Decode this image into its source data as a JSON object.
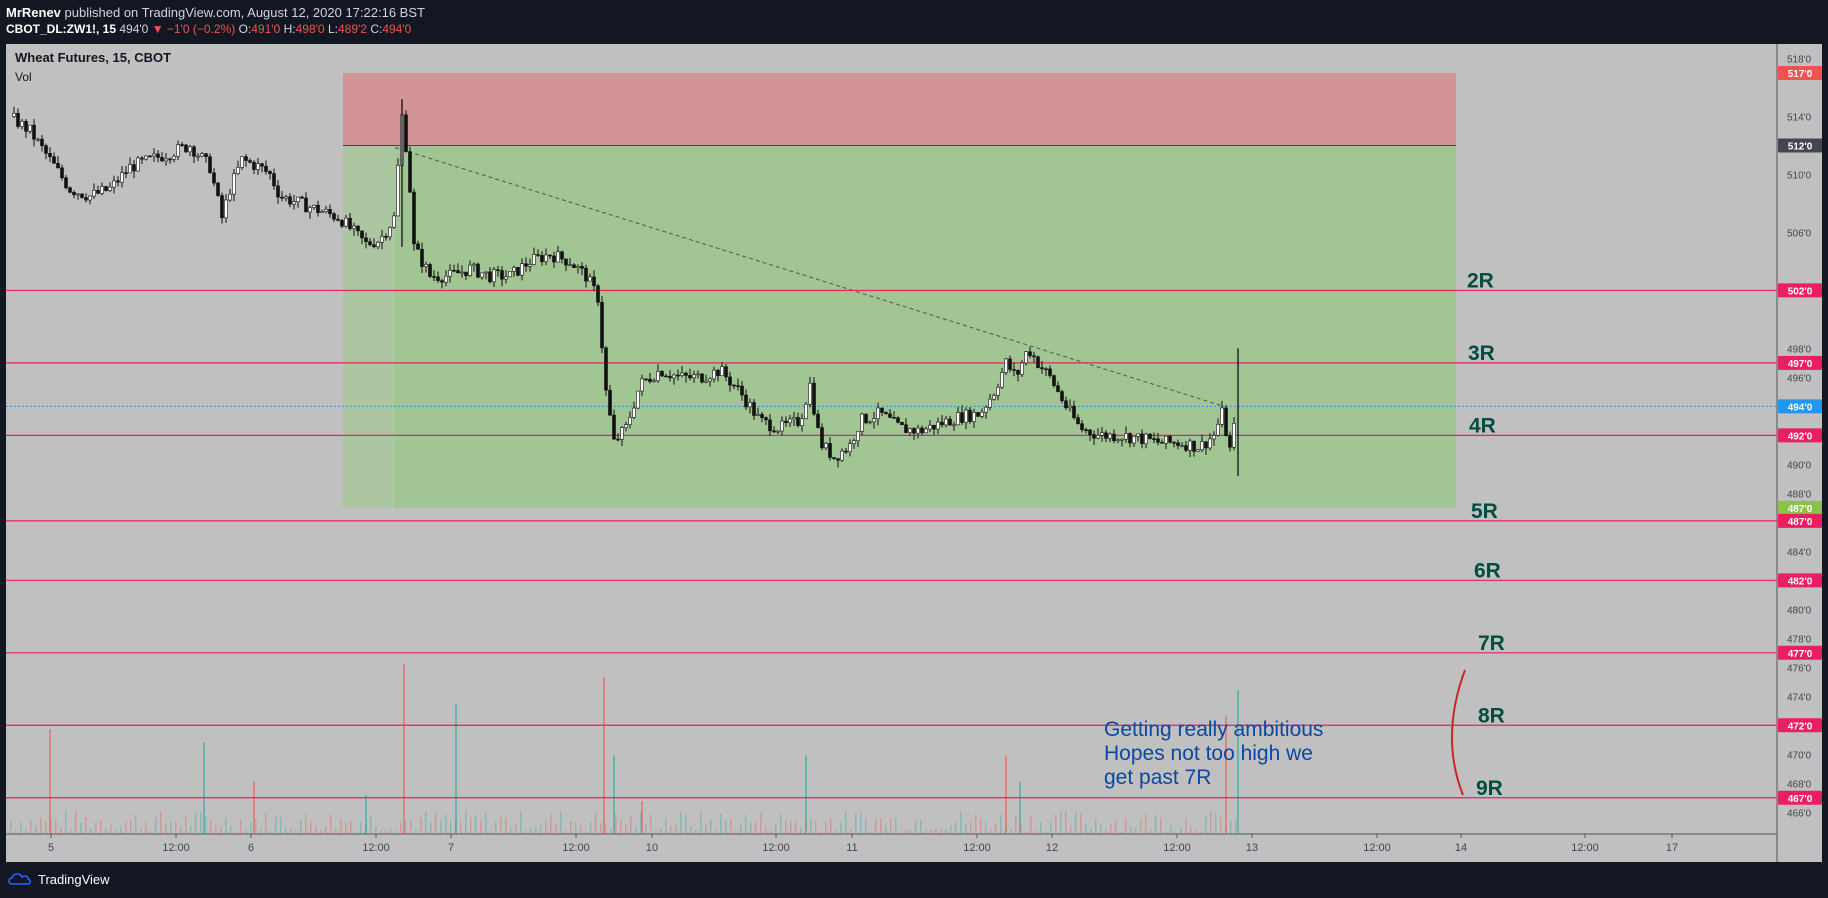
{
  "header": {
    "publisher_name": "MrRenev",
    "published_text": "published on TradingView.com, August 12, 2020 17:22:16 BST",
    "symbol": "CBOT_DL:ZW1!, 15",
    "last": "494'0",
    "change": "▼ −1'0 (−0.2%)",
    "open_label": "O:",
    "open": "491'0",
    "high_label": "H:",
    "high": "498'0",
    "low_label": "L:",
    "low": "489'2",
    "close_label": "C:",
    "close": "494'0"
  },
  "pane": {
    "title": "Wheat Futures, 15, CBOT",
    "volume_label": "Vol"
  },
  "footer": {
    "brand": "TradingView"
  },
  "colors": {
    "background": "#c0c0c0",
    "stop_zone": "#d29494",
    "target_zone": "#a2c594",
    "level_line": "#e91e63",
    "r_label": "#004d40",
    "note_text": "#0d47a1",
    "bracket": "#c62828",
    "current_price": "#2196f3",
    "up_volume": "#26a69a",
    "down_volume": "#ef5350"
  },
  "chart_data": {
    "type": "candlestick",
    "symbol": "Wheat Futures, 15, CBOT",
    "price_unit": "cents (xxx'y notation)",
    "x_tick_labels": [
      "5",
      "12:00",
      "6",
      "12:00",
      "7",
      "12:00",
      "10",
      "12:00",
      "11",
      "12:00",
      "12",
      "12:00",
      "13",
      "12:00",
      "14",
      "12:00",
      "17"
    ],
    "y_tick_labels": [
      "518'0",
      "514'0",
      "510'0",
      "506'0",
      "498'0",
      "496'0",
      "490'0",
      "488'0",
      "484'0",
      "480'0",
      "478'0",
      "476'0",
      "474'0",
      "470'0",
      "468'0",
      "466'0"
    ],
    "ylim": [
      464.5,
      519
    ],
    "price_tags": [
      {
        "label": "517'0",
        "value": 517,
        "color": "#ef5350"
      },
      {
        "label": "512'0",
        "value": 512,
        "color": "#434651"
      },
      {
        "label": "502'0",
        "value": 502,
        "color": "#e91e63"
      },
      {
        "label": "497'0",
        "value": 497,
        "color": "#e91e63"
      },
      {
        "label": "494'0",
        "value": 494,
        "color": "#2196f3"
      },
      {
        "label": "492'0",
        "value": 492,
        "color": "#e91e63"
      },
      {
        "label": "487'0",
        "value": 487,
        "color": "#8bc34a"
      },
      {
        "label": "487'0",
        "value": 486.1,
        "color": "#e91e63"
      },
      {
        "label": "482'0",
        "value": 482,
        "color": "#e91e63"
      },
      {
        "label": "477'0",
        "value": 477,
        "color": "#e91e63"
      },
      {
        "label": "472'0",
        "value": 472,
        "color": "#e91e63"
      },
      {
        "label": "467'0",
        "value": 467,
        "color": "#e91e63"
      }
    ],
    "position": {
      "type": "short",
      "entry": 512,
      "stop": 517,
      "target": 487
    },
    "r_levels": [
      {
        "label": "2R",
        "price": 502
      },
      {
        "label": "3R",
        "price": 497
      },
      {
        "label": "4R",
        "price": 492
      },
      {
        "label": "5R",
        "price": 487
      },
      {
        "label": "6R",
        "price": 482
      },
      {
        "label": "7R",
        "price": 477
      },
      {
        "label": "8R",
        "price": 472
      },
      {
        "label": "9R",
        "price": 467
      }
    ],
    "current_price": 494,
    "annotation": [
      "Getting really ambitious",
      "Hopes not too high we",
      "get past 7R"
    ],
    "price_path": [
      [
        0,
        514
      ],
      [
        1,
        513
      ],
      [
        2,
        511
      ],
      [
        3,
        509
      ],
      [
        4,
        508.5
      ],
      [
        5,
        509
      ],
      [
        6,
        510.5
      ],
      [
        7,
        511
      ],
      [
        8,
        511.5
      ],
      [
        9,
        512
      ],
      [
        10,
        510.5
      ],
      [
        10.6,
        507
      ],
      [
        11,
        509
      ],
      [
        11.6,
        511
      ],
      [
        12.5,
        510.5
      ],
      [
        13,
        510
      ],
      [
        13.5,
        508.5
      ],
      [
        14.5,
        508
      ],
      [
        15.5,
        507.5
      ],
      [
        16.5,
        507
      ],
      [
        17.2,
        506
      ],
      [
        17.8,
        505.2
      ],
      [
        18.5,
        505.5
      ],
      [
        19.2,
        507
      ],
      [
        19.6,
        514
      ],
      [
        19.9,
        511
      ],
      [
        20.2,
        505
      ],
      [
        21,
        503
      ],
      [
        22,
        503
      ],
      [
        23,
        503.5
      ],
      [
        24,
        503
      ],
      [
        25,
        503
      ],
      [
        26,
        504
      ],
      [
        27,
        504.5
      ],
      [
        28,
        504
      ],
      [
        28.8,
        503
      ],
      [
        29.4,
        501.5
      ],
      [
        29.8,
        495
      ],
      [
        30.2,
        491.5
      ],
      [
        30.8,
        492.5
      ],
      [
        31.5,
        495.5
      ],
      [
        32.5,
        496.5
      ],
      [
        33.5,
        496
      ],
      [
        34.5,
        496
      ],
      [
        35.5,
        496.5
      ],
      [
        36.5,
        495
      ],
      [
        37.5,
        493
      ],
      [
        38.5,
        492.5
      ],
      [
        39.5,
        493
      ],
      [
        40,
        495.5
      ],
      [
        40.5,
        491.5
      ],
      [
        41.2,
        490.5
      ],
      [
        42,
        491.3
      ],
      [
        42.5,
        493
      ],
      [
        43.5,
        493.5
      ],
      [
        44.5,
        492.5
      ],
      [
        45.5,
        492.3
      ],
      [
        46.5,
        492.8
      ],
      [
        47.5,
        493.3
      ],
      [
        48.5,
        493.5
      ],
      [
        49.2,
        495
      ],
      [
        49.8,
        497
      ],
      [
        50.3,
        496
      ],
      [
        50.9,
        498
      ],
      [
        51.4,
        497
      ],
      [
        52,
        496
      ],
      [
        52.8,
        494
      ],
      [
        53.5,
        492.5
      ],
      [
        54.5,
        492
      ],
      [
        55.5,
        492
      ],
      [
        56.5,
        491.8
      ],
      [
        57.5,
        491.5
      ],
      [
        58.5,
        491.5
      ],
      [
        59.5,
        491.2
      ],
      [
        60.2,
        492
      ],
      [
        60.6,
        493.5
      ],
      [
        61,
        491
      ],
      [
        61.4,
        494
      ]
    ],
    "volume": [
      {
        "x": 2,
        "v": 8
      },
      {
        "x": 9.7,
        "v": 7
      },
      {
        "x": 12.2,
        "v": 4
      },
      {
        "x": 17.8,
        "v": 3
      },
      {
        "x": 19.7,
        "v": 13
      },
      {
        "x": 22.3,
        "v": 10
      },
      {
        "x": 29.7,
        "v": 12
      },
      {
        "x": 30.2,
        "v": 6
      },
      {
        "x": 31.6,
        "v": 2.5
      },
      {
        "x": 39.8,
        "v": 6
      },
      {
        "x": 49.8,
        "v": 6
      },
      {
        "x": 50.5,
        "v": 4
      },
      {
        "x": 60.8,
        "v": 9
      },
      {
        "x": 61.4,
        "v": 11
      }
    ]
  }
}
